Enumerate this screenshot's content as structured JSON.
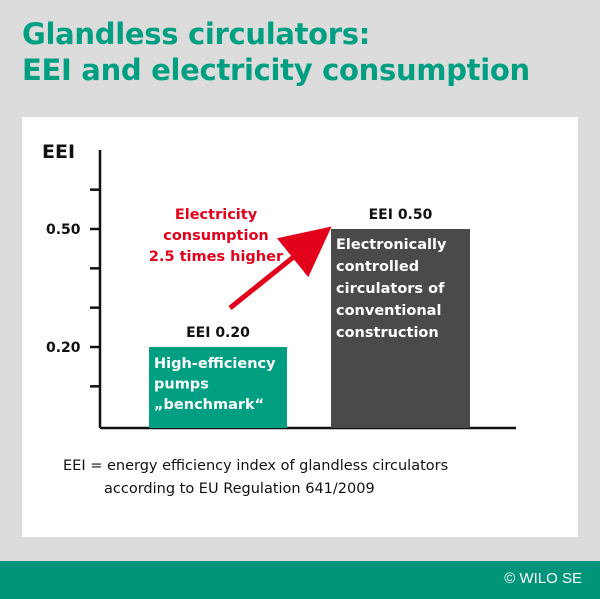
{
  "header": {
    "title_line1": "Glandless circulators:",
    "title_line2": "EEI and electricity consumption"
  },
  "chart_data": {
    "type": "bar",
    "ylabel": "EEI",
    "ticks": [
      "0.50",
      "0.20"
    ],
    "ylim": [
      0.0,
      0.7
    ],
    "categories": [
      "High-efficiency pumps „benchmark“",
      "Electronically controlled circulators of conventional construction"
    ],
    "values": [
      0.2,
      0.5
    ],
    "value_labels": [
      "EEI 0.20",
      "EEI 0.50"
    ],
    "bar_text": [
      [
        "High-efficiency",
        "pumps",
        "„benchmark“"
      ],
      [
        "Electronically",
        "controlled",
        "circulators of",
        "conventional",
        "construction"
      ]
    ],
    "bar_colors": [
      "#009f82",
      "#4a4a4a"
    ],
    "annotation": [
      "Electricity",
      "consumption",
      "2.5 times higher"
    ],
    "annotation_color": "#e3001b"
  },
  "note": {
    "line1": "EEI = energy efficiency index of glandless circulators",
    "line2": "according to EU Regulation 641/2009"
  },
  "footer": {
    "copyright": "© WILO SE"
  }
}
